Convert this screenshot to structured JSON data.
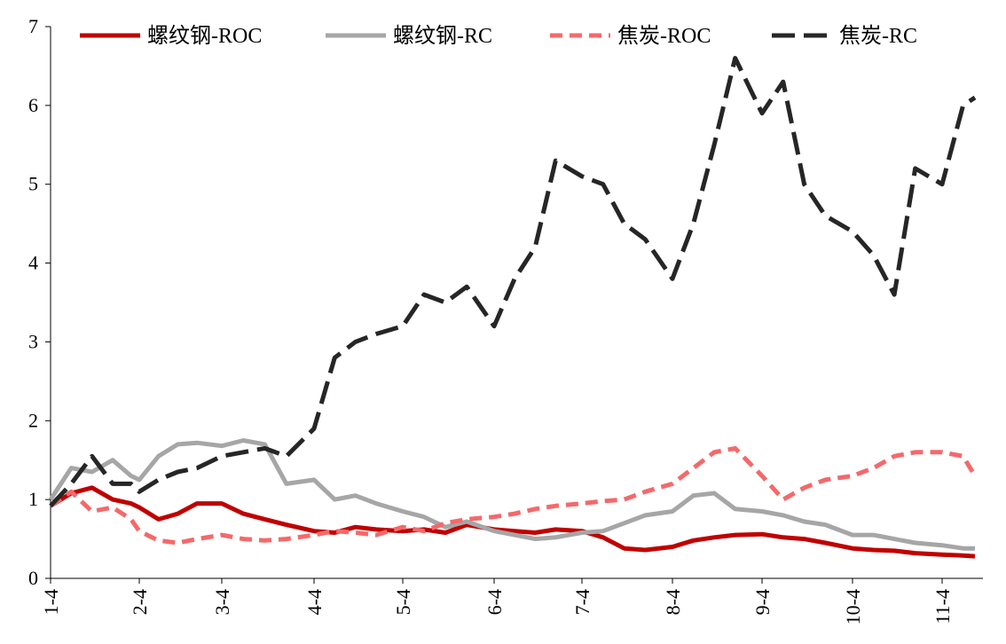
{
  "chart_data": {
    "type": "line",
    "ylim": [
      0,
      7
    ],
    "yticks": [
      0,
      1,
      2,
      3,
      4,
      5,
      6,
      7
    ],
    "x_tick_labels": [
      "1-4",
      "2-4",
      "3-4",
      "4-4",
      "5-4",
      "6-4",
      "7-4",
      "8-4",
      "9-4",
      "10-4",
      "11-4"
    ],
    "grid": false,
    "legend_position": "top",
    "series": [
      {
        "name": "螺纹钢-ROC",
        "color": "#c00000",
        "style": "solid",
        "x": [
          "1-4",
          "1-11",
          "1-18",
          "1-25",
          "2-1",
          "2-4",
          "2-11",
          "2-18",
          "2-25",
          "3-4",
          "3-11",
          "3-18",
          "3-25",
          "4-4",
          "4-11",
          "4-18",
          "4-25",
          "5-4",
          "5-11",
          "5-18",
          "5-25",
          "6-4",
          "6-11",
          "6-18",
          "6-25",
          "7-4",
          "7-11",
          "7-18",
          "7-25",
          "8-4",
          "8-11",
          "8-18",
          "8-25",
          "9-4",
          "9-11",
          "9-18",
          "9-25",
          "10-4",
          "10-11",
          "10-18",
          "10-25",
          "11-4",
          "11-11",
          "11-15"
        ],
        "values": [
          0.92,
          1.08,
          1.15,
          1.0,
          0.95,
          0.9,
          0.75,
          0.82,
          0.95,
          0.95,
          0.82,
          0.75,
          0.68,
          0.6,
          0.58,
          0.65,
          0.62,
          0.6,
          0.62,
          0.58,
          0.68,
          0.62,
          0.6,
          0.58,
          0.62,
          0.6,
          0.52,
          0.38,
          0.36,
          0.4,
          0.48,
          0.52,
          0.55,
          0.56,
          0.52,
          0.5,
          0.45,
          0.38,
          0.36,
          0.35,
          0.32,
          0.3,
          0.29,
          0.28
        ]
      },
      {
        "name": "螺纹钢-RC",
        "color": "#a6a6a6",
        "style": "solid",
        "x": [
          "1-4",
          "1-11",
          "1-18",
          "1-25",
          "2-1",
          "2-4",
          "2-11",
          "2-18",
          "2-25",
          "3-4",
          "3-11",
          "3-18",
          "3-25",
          "4-4",
          "4-11",
          "4-18",
          "4-25",
          "5-4",
          "5-11",
          "5-18",
          "5-25",
          "6-4",
          "6-11",
          "6-18",
          "6-25",
          "7-4",
          "7-11",
          "7-18",
          "7-25",
          "8-4",
          "8-11",
          "8-18",
          "8-25",
          "9-4",
          "9-11",
          "9-18",
          "9-25",
          "10-4",
          "10-11",
          "10-18",
          "10-25",
          "11-4",
          "11-11",
          "11-15"
        ],
        "values": [
          1.0,
          1.4,
          1.35,
          1.5,
          1.3,
          1.25,
          1.55,
          1.7,
          1.72,
          1.68,
          1.75,
          1.7,
          1.2,
          1.25,
          1.0,
          1.05,
          0.95,
          0.85,
          0.78,
          0.65,
          0.72,
          0.6,
          0.55,
          0.5,
          0.52,
          0.58,
          0.6,
          0.7,
          0.8,
          0.85,
          1.05,
          1.08,
          0.88,
          0.85,
          0.8,
          0.72,
          0.68,
          0.55,
          0.55,
          0.5,
          0.45,
          0.42,
          0.38,
          0.38
        ]
      },
      {
        "name": "焦炭-ROC",
        "color": "#f4696b",
        "style": "dashed",
        "x": [
          "1-4",
          "1-11",
          "1-18",
          "1-25",
          "2-1",
          "2-4",
          "2-11",
          "2-18",
          "2-25",
          "3-4",
          "3-11",
          "3-18",
          "3-25",
          "4-4",
          "4-11",
          "4-18",
          "4-25",
          "5-4",
          "5-11",
          "5-18",
          "5-25",
          "6-4",
          "6-11",
          "6-18",
          "6-25",
          "7-4",
          "7-11",
          "7-18",
          "7-25",
          "8-4",
          "8-11",
          "8-18",
          "8-25",
          "9-4",
          "9-11",
          "9-18",
          "9-25",
          "10-4",
          "10-11",
          "10-18",
          "10-25",
          "11-4",
          "11-11",
          "11-15"
        ],
        "values": [
          0.92,
          1.1,
          0.85,
          0.9,
          0.75,
          0.6,
          0.48,
          0.45,
          0.5,
          0.55,
          0.5,
          0.48,
          0.5,
          0.55,
          0.6,
          0.58,
          0.55,
          0.65,
          0.6,
          0.7,
          0.75,
          0.78,
          0.82,
          0.88,
          0.92,
          0.95,
          0.98,
          1.0,
          1.1,
          1.2,
          1.4,
          1.6,
          1.65,
          1.3,
          1.0,
          1.15,
          1.25,
          1.3,
          1.4,
          1.55,
          1.6,
          1.6,
          1.55,
          1.3
        ]
      },
      {
        "name": "焦炭-RC",
        "color": "#262626",
        "style": "dashed",
        "x": [
          "1-4",
          "1-11",
          "1-18",
          "1-25",
          "2-1",
          "2-4",
          "2-11",
          "2-18",
          "2-25",
          "3-4",
          "3-11",
          "3-18",
          "3-25",
          "4-4",
          "4-11",
          "4-18",
          "4-25",
          "5-4",
          "5-11",
          "5-18",
          "5-25",
          "6-4",
          "6-11",
          "6-18",
          "6-25",
          "7-4",
          "7-11",
          "7-18",
          "7-25",
          "8-4",
          "8-11",
          "8-18",
          "8-25",
          "9-4",
          "9-11",
          "9-18",
          "9-25",
          "10-4",
          "10-11",
          "10-18",
          "10-25",
          "11-4",
          "11-11",
          "11-15"
        ],
        "values": [
          0.92,
          1.2,
          1.55,
          1.2,
          1.2,
          1.1,
          1.25,
          1.35,
          1.4,
          1.55,
          1.6,
          1.65,
          1.55,
          1.9,
          2.8,
          3.0,
          3.1,
          3.2,
          3.6,
          3.5,
          3.7,
          3.2,
          3.8,
          4.2,
          5.3,
          5.1,
          5.0,
          4.5,
          4.3,
          3.8,
          4.5,
          5.5,
          6.6,
          5.9,
          6.3,
          5.0,
          4.6,
          4.4,
          4.1,
          3.6,
          5.2,
          5.0,
          6.0,
          6.1
        ]
      }
    ]
  }
}
